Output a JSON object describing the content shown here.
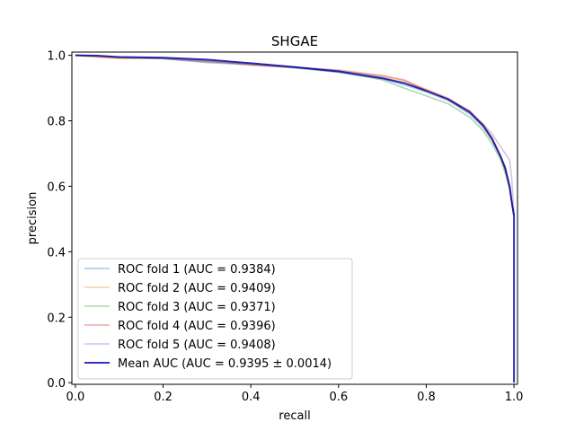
{
  "chart_data": {
    "type": "line",
    "title": "SHGAE",
    "xlabel": "recall",
    "ylabel": "precision",
    "xlim": [
      -0.008,
      1.008
    ],
    "ylim": [
      -0.005,
      1.01
    ],
    "xticks": [
      0.0,
      0.2,
      0.4,
      0.6,
      0.8,
      1.0
    ],
    "xtick_labels": [
      "0.0",
      "0.2",
      "0.4",
      "0.6",
      "0.8",
      "1.0"
    ],
    "yticks": [
      0.0,
      0.2,
      0.4,
      0.6,
      0.8,
      1.0
    ],
    "ytick_labels": [
      "0.0",
      "0.2",
      "0.4",
      "0.6",
      "0.8",
      "1.0"
    ],
    "grid": false,
    "legend_position": "lower-left",
    "series": [
      {
        "name": "ROC fold 1 (AUC = 0.9384)",
        "color": "#1f77b4",
        "opacity": 0.4,
        "x": [
          0,
          0.05,
          0.1,
          0.2,
          0.3,
          0.4,
          0.5,
          0.6,
          0.7,
          0.75,
          0.8,
          0.85,
          0.9,
          0.93,
          0.95,
          0.97,
          0.98,
          0.99,
          0.995,
          1.0
        ],
        "y": [
          1.0,
          0.998,
          0.993,
          0.99,
          0.978,
          0.972,
          0.962,
          0.948,
          0.928,
          0.91,
          0.888,
          0.862,
          0.82,
          0.78,
          0.74,
          0.69,
          0.66,
          0.6,
          0.55,
          0.51
        ]
      },
      {
        "name": "ROC fold 2 (AUC = 0.9409)",
        "color": "#ff7f0e",
        "opacity": 0.4,
        "x": [
          0,
          0.05,
          0.1,
          0.2,
          0.3,
          0.4,
          0.5,
          0.6,
          0.7,
          0.75,
          0.8,
          0.85,
          0.9,
          0.93,
          0.95,
          0.97,
          0.98,
          0.99,
          0.995,
          1.0
        ],
        "y": [
          1.0,
          0.994,
          0.99,
          0.992,
          0.984,
          0.976,
          0.964,
          0.952,
          0.935,
          0.922,
          0.897,
          0.87,
          0.828,
          0.79,
          0.75,
          0.69,
          0.655,
          0.6,
          0.55,
          0.51
        ]
      },
      {
        "name": "ROC fold 3 (AUC = 0.9371)",
        "color": "#2ca02c",
        "opacity": 0.4,
        "x": [
          0,
          0.05,
          0.1,
          0.2,
          0.3,
          0.4,
          0.5,
          0.6,
          0.7,
          0.75,
          0.8,
          0.85,
          0.9,
          0.93,
          0.95,
          0.97,
          0.98,
          0.99,
          0.995,
          1.0
        ],
        "y": [
          1.0,
          0.997,
          0.993,
          0.99,
          0.982,
          0.973,
          0.962,
          0.95,
          0.925,
          0.9,
          0.876,
          0.852,
          0.81,
          0.77,
          0.73,
          0.68,
          0.64,
          0.59,
          0.55,
          0.51
        ]
      },
      {
        "name": "ROC fold 4 (AUC = 0.9396)",
        "color": "#d62728",
        "opacity": 0.4,
        "x": [
          0,
          0.05,
          0.1,
          0.2,
          0.3,
          0.4,
          0.5,
          0.6,
          0.7,
          0.75,
          0.8,
          0.85,
          0.9,
          0.93,
          0.95,
          0.97,
          0.98,
          0.99,
          0.995,
          1.0
        ],
        "y": [
          1.0,
          0.997,
          0.993,
          0.992,
          0.983,
          0.97,
          0.963,
          0.955,
          0.938,
          0.925,
          0.893,
          0.866,
          0.83,
          0.785,
          0.745,
          0.69,
          0.65,
          0.6,
          0.55,
          0.51
        ]
      },
      {
        "name": "ROC fold 5 (AUC = 0.9408)",
        "color": "#9467bd",
        "opacity": 0.4,
        "x": [
          0,
          0.05,
          0.1,
          0.2,
          0.3,
          0.4,
          0.5,
          0.6,
          0.7,
          0.75,
          0.8,
          0.85,
          0.9,
          0.93,
          0.95,
          0.97,
          0.98,
          0.99,
          0.995,
          1.0
        ],
        "y": [
          1.0,
          0.998,
          0.994,
          0.99,
          0.98,
          0.975,
          0.965,
          0.952,
          0.933,
          0.915,
          0.89,
          0.865,
          0.825,
          0.79,
          0.76,
          0.72,
          0.7,
          0.68,
          0.62,
          0.51
        ]
      },
      {
        "name": "Mean AUC (AUC = 0.9395 ± 0.0014)",
        "color": "#0000aa",
        "opacity": 0.8,
        "width": 2,
        "x": [
          0,
          0.05,
          0.1,
          0.2,
          0.3,
          0.4,
          0.5,
          0.6,
          0.7,
          0.75,
          0.8,
          0.85,
          0.9,
          0.93,
          0.95,
          0.97,
          0.98,
          0.99,
          0.995,
          1.0,
          1.0
        ],
        "y": [
          1.0,
          0.999,
          0.995,
          0.993,
          0.987,
          0.976,
          0.964,
          0.951,
          0.93,
          0.915,
          0.892,
          0.866,
          0.825,
          0.785,
          0.745,
          0.69,
          0.655,
          0.6,
          0.55,
          0.51,
          0.0
        ]
      }
    ]
  }
}
